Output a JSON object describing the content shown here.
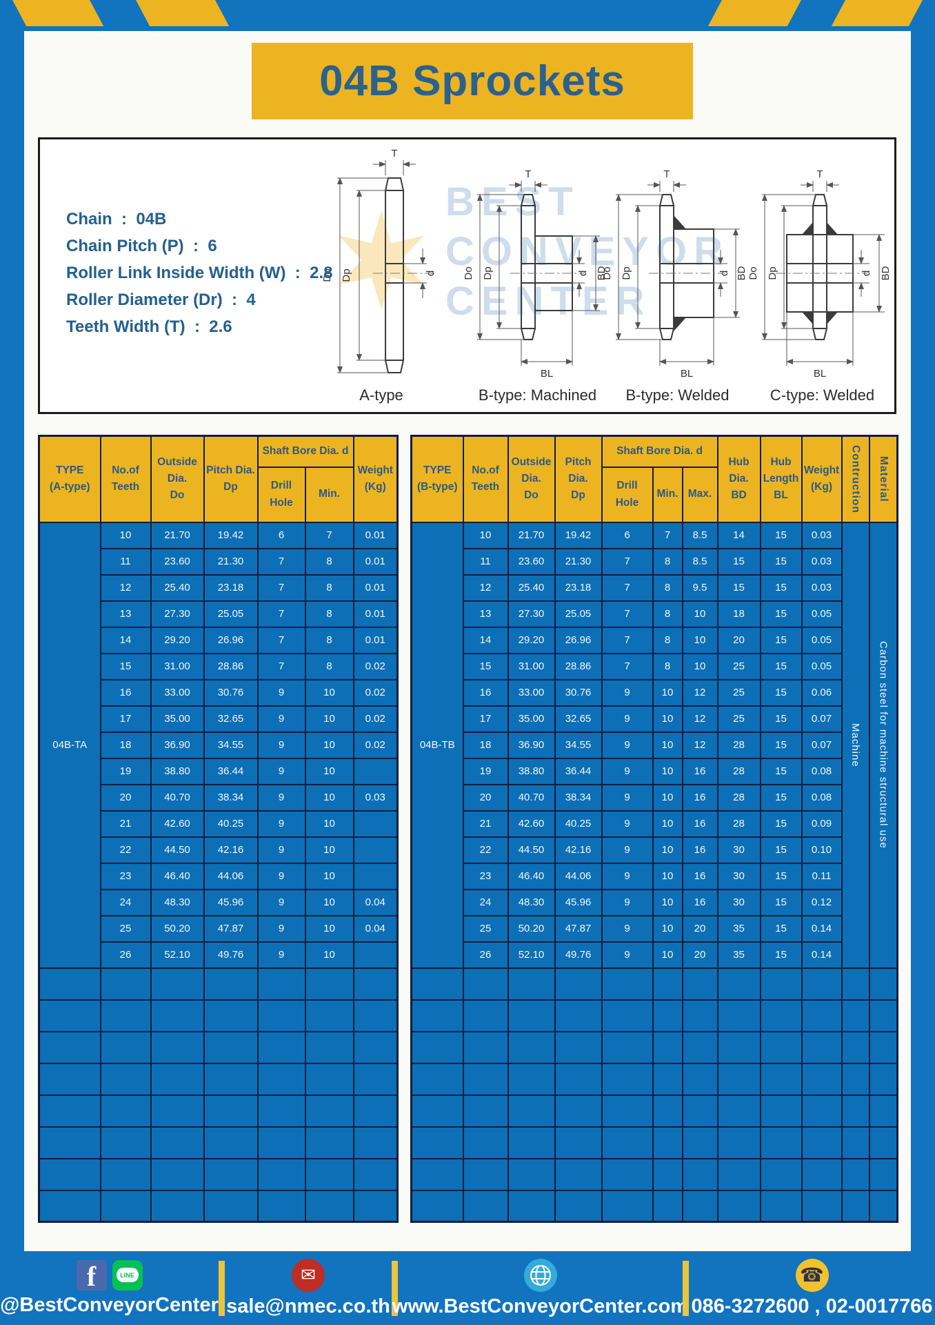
{
  "title": "04B Sprockets",
  "specs": {
    "lines": [
      "Chain  :  04B",
      "Chain Pitch (P)  :  6",
      "Roller Link Inside Width (W)  :  2.8",
      "Roller Diameter (Dr)  :  4",
      "Teeth Width (T)  :  2.6"
    ]
  },
  "diagram": {
    "dims": {
      "T": "T",
      "Do": "Do",
      "Dp": "Dp",
      "d": "d",
      "BD": "BD",
      "BL": "BL"
    },
    "labels": {
      "a": "A-type",
      "b_machined": "B-type: Machined",
      "b_welded": "B-type: Welded",
      "c_welded": "C-type: Welded"
    },
    "watermark": {
      "line1": "BEST",
      "line2": "CONVEYOR",
      "line3": "CENTER"
    }
  },
  "table_a": {
    "headers": {
      "type": "TYPE\n(A-type)",
      "teeth": "No.of\nTeeth",
      "outside": "Outside\nDia.\nDo",
      "pitch": "Pitch Dia.\nDp",
      "shaft": "Shaft Bore Dia. d",
      "drill": "Drill Hole",
      "min": "Min.",
      "weight": "Weight\n(Kg)"
    },
    "type_label": "04B-TA",
    "rows": [
      [
        "10",
        "21.70",
        "19.42",
        "6",
        "7",
        "0.01"
      ],
      [
        "11",
        "23.60",
        "21.30",
        "7",
        "8",
        "0.01"
      ],
      [
        "12",
        "25.40",
        "23.18",
        "7",
        "8",
        "0.01"
      ],
      [
        "13",
        "27.30",
        "25.05",
        "7",
        "8",
        "0.01"
      ],
      [
        "14",
        "29.20",
        "26.96",
        "7",
        "8",
        "0.01"
      ],
      [
        "15",
        "31.00",
        "28.86",
        "7",
        "8",
        "0.02"
      ],
      [
        "16",
        "33.00",
        "30.76",
        "9",
        "10",
        "0.02"
      ],
      [
        "17",
        "35.00",
        "32.65",
        "9",
        "10",
        "0.02"
      ],
      [
        "18",
        "36.90",
        "34.55",
        "9",
        "10",
        "0.02"
      ],
      [
        "19",
        "38.80",
        "36.44",
        "9",
        "10",
        ""
      ],
      [
        "20",
        "40.70",
        "38.34",
        "9",
        "10",
        "0.03"
      ],
      [
        "21",
        "42.60",
        "40.25",
        "9",
        "10",
        ""
      ],
      [
        "22",
        "44.50",
        "42.16",
        "9",
        "10",
        ""
      ],
      [
        "23",
        "46.40",
        "44.06",
        "9",
        "10",
        ""
      ],
      [
        "24",
        "48.30",
        "45.96",
        "9",
        "10",
        "0.04"
      ],
      [
        "25",
        "50.20",
        "47.87",
        "9",
        "10",
        "0.04"
      ],
      [
        "26",
        "52.10",
        "49.76",
        "9",
        "10",
        ""
      ]
    ],
    "empty_rows": 8
  },
  "table_b": {
    "headers": {
      "type": "TYPE\n(B-type)",
      "teeth": "No.of\nTeeth",
      "outside": "Outside\nDia.\nDo",
      "pitch": "Pitch Dia.\nDp",
      "shaft": "Shaft Bore Dia. d",
      "drill": "Drill Hole",
      "min": "Min.",
      "max": "Max.",
      "hub_dia": "Hub Dia.\nBD",
      "hub_len": "Hub\nLength\nBL",
      "weight": "Weight\n(Kg)",
      "construction": "Contruction",
      "material": "Material"
    },
    "type_label": "04B-TB",
    "construction_value": "Machine",
    "material_value": "Carbon steel for machine structural use",
    "rows": [
      [
        "10",
        "21.70",
        "19.42",
        "6",
        "7",
        "8.5",
        "14",
        "15",
        "0.03"
      ],
      [
        "11",
        "23.60",
        "21.30",
        "7",
        "8",
        "8.5",
        "15",
        "15",
        "0.03"
      ],
      [
        "12",
        "25.40",
        "23.18",
        "7",
        "8",
        "9.5",
        "15",
        "15",
        "0.03"
      ],
      [
        "13",
        "27.30",
        "25.05",
        "7",
        "8",
        "10",
        "18",
        "15",
        "0.05"
      ],
      [
        "14",
        "29.20",
        "26.96",
        "7",
        "8",
        "10",
        "20",
        "15",
        "0.05"
      ],
      [
        "15",
        "31.00",
        "28.86",
        "7",
        "8",
        "10",
        "25",
        "15",
        "0.05"
      ],
      [
        "16",
        "33.00",
        "30.76",
        "9",
        "10",
        "12",
        "25",
        "15",
        "0.06"
      ],
      [
        "17",
        "35.00",
        "32.65",
        "9",
        "10",
        "12",
        "25",
        "15",
        "0.07"
      ],
      [
        "18",
        "36.90",
        "34.55",
        "9",
        "10",
        "12",
        "28",
        "15",
        "0.07"
      ],
      [
        "19",
        "38.80",
        "36.44",
        "9",
        "10",
        "16",
        "28",
        "15",
        "0.08"
      ],
      [
        "20",
        "40.70",
        "38.34",
        "9",
        "10",
        "16",
        "28",
        "15",
        "0.08"
      ],
      [
        "21",
        "42.60",
        "40.25",
        "9",
        "10",
        "16",
        "28",
        "15",
        "0.09"
      ],
      [
        "22",
        "44.50",
        "42.16",
        "9",
        "10",
        "16",
        "30",
        "15",
        "0.10"
      ],
      [
        "23",
        "46.40",
        "44.06",
        "9",
        "10",
        "16",
        "30",
        "15",
        "0.11"
      ],
      [
        "24",
        "48.30",
        "45.96",
        "9",
        "10",
        "16",
        "30",
        "15",
        "0.12"
      ],
      [
        "25",
        "50.20",
        "47.87",
        "9",
        "10",
        "20",
        "35",
        "15",
        "0.14"
      ],
      [
        "26",
        "52.10",
        "49.76",
        "9",
        "10",
        "20",
        "35",
        "15",
        "0.14"
      ]
    ],
    "empty_rows": 8
  },
  "footer": {
    "line_label": "LINE",
    "social_handle": "@BestConveyorCenter",
    "email": "sale@nmec.co.th",
    "website": "www.BestConveyorCenter.com",
    "phones": "086-3272600 , 02-0017766"
  },
  "colors": {
    "frame_blue": "#1273BE",
    "cell_blue": "#0D6FB6",
    "gold": "#EDB421",
    "navy_text": "#2A618F",
    "border_navy": "#0E1E3E"
  }
}
